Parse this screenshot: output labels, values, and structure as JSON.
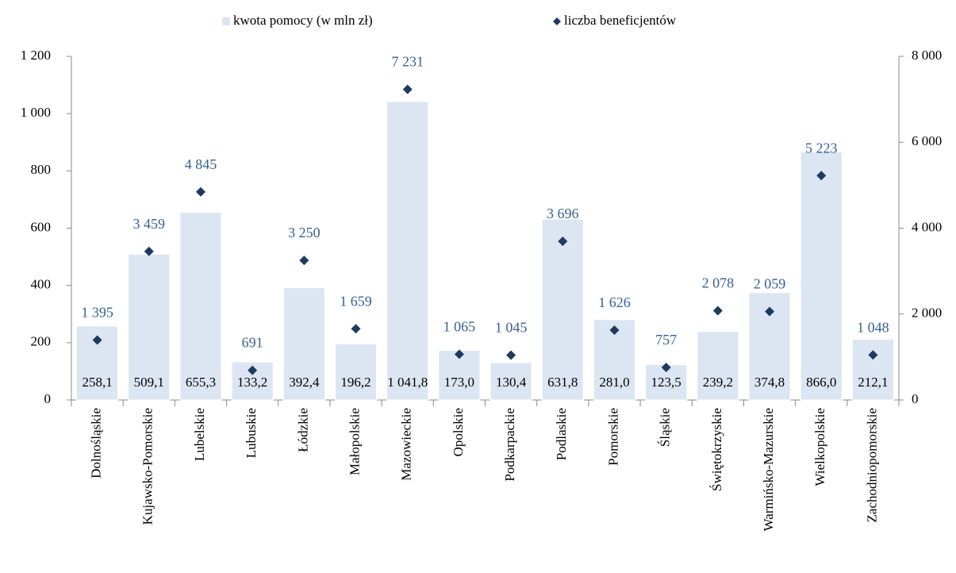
{
  "chart_data": {
    "type": "bar_scatter",
    "categories": [
      "Dolnośląskie",
      "Kujawsko-Pomorskie",
      "Lubelskie",
      "Lubuskie",
      "Łódzkie",
      "Małopolskie",
      "Mazowieckie",
      "Opolskie",
      "Podkarpackie",
      "Podlaskie",
      "Pomorskie",
      "Śląskie",
      "Świętokrzyskie",
      "Warmińsko-Mazurskie",
      "Wielkopolskie",
      "Zachodniopomorskie"
    ],
    "series": [
      {
        "name": "kwota pomocy (w mln zł)",
        "type": "bar",
        "color": "#dce6f2",
        "values": [
          258.1,
          509.1,
          655.3,
          133.2,
          392.4,
          196.2,
          1041.8,
          173.0,
          130.4,
          631.8,
          281.0,
          123.5,
          239.2,
          374.8,
          866.0,
          212.1
        ],
        "value_labels": [
          "258,1",
          "509,1",
          "655,3",
          "133,2",
          "392,4",
          "196,2",
          "1 041,8",
          "173,0",
          "130,4",
          "631,8",
          "281,0",
          "123,5",
          "239,2",
          "374,8",
          "866,0",
          "212,1"
        ]
      },
      {
        "name": "liczba beneficjentów",
        "type": "scatter",
        "axis": "y2",
        "color": "#1f3a5f",
        "values": [
          1395,
          3459,
          4845,
          691,
          3250,
          1659,
          7231,
          1065,
          1045,
          3696,
          1626,
          757,
          2078,
          2059,
          5223,
          1048
        ],
        "value_labels": [
          "1 395",
          "3 459",
          "4 845",
          "691",
          "3 250",
          "1 659",
          "7 231",
          "1 065",
          "1 045",
          "3 696",
          "1 626",
          "757",
          "2 078",
          "2 059",
          "5 223",
          "1 048"
        ]
      }
    ],
    "ylim": [
      0,
      1200
    ],
    "yticks": [
      0,
      200,
      400,
      600,
      800,
      {
        "value": 1000,
        "label": "1 000"
      },
      {
        "value": 1200,
        "label": "1 200"
      }
    ],
    "y2lim": [
      0,
      8000
    ],
    "y2ticks": [
      0,
      {
        "value": 2000,
        "label": "2 000"
      },
      {
        "value": 4000,
        "label": "4 000"
      },
      {
        "value": 6000,
        "label": "6 000"
      },
      {
        "value": 8000,
        "label": "8 000"
      }
    ],
    "legend": "top",
    "grid": false
  }
}
